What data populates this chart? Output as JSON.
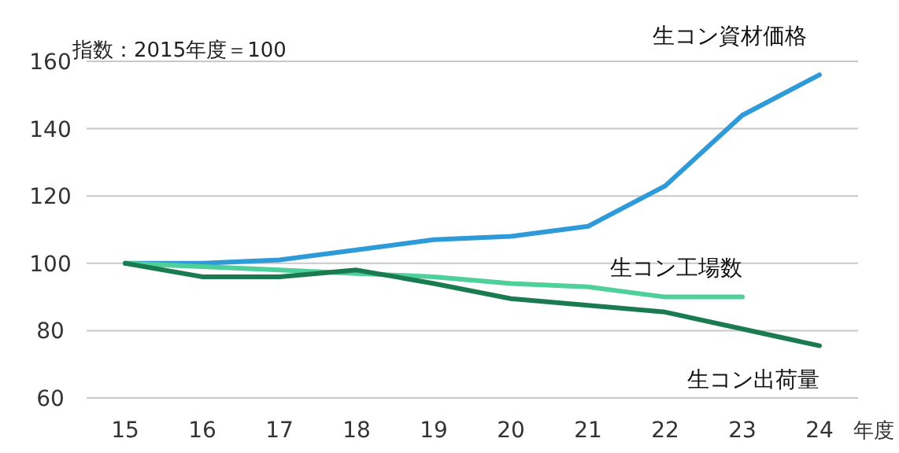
{
  "chart_data": {
    "type": "line",
    "ylabel": "指数：2015年度＝100",
    "xlabel": "年度",
    "categories": [
      "15",
      "16",
      "17",
      "18",
      "19",
      "20",
      "21",
      "22",
      "23",
      "24"
    ],
    "series": [
      {
        "name": "生コン資材価格",
        "color": "#2e9bd8",
        "values": [
          100,
          100,
          101,
          104,
          107,
          108,
          111,
          123,
          144,
          156
        ]
      },
      {
        "name": "生コン工場数",
        "color": "#4fcf9a",
        "values": [
          100,
          99,
          98,
          97,
          96,
          94,
          93,
          90,
          90,
          null
        ]
      },
      {
        "name": "生コン出荷量",
        "color": "#1a7a50",
        "values": [
          100,
          96,
          96,
          98,
          94,
          89.5,
          87.5,
          85.5,
          80.5,
          75.5
        ]
      }
    ],
    "ylim": [
      60,
      160
    ],
    "yticks": [
      60,
      80,
      100,
      120,
      140,
      160
    ],
    "grid": "y",
    "legend": false,
    "marker": "none",
    "line_style": "solid"
  }
}
